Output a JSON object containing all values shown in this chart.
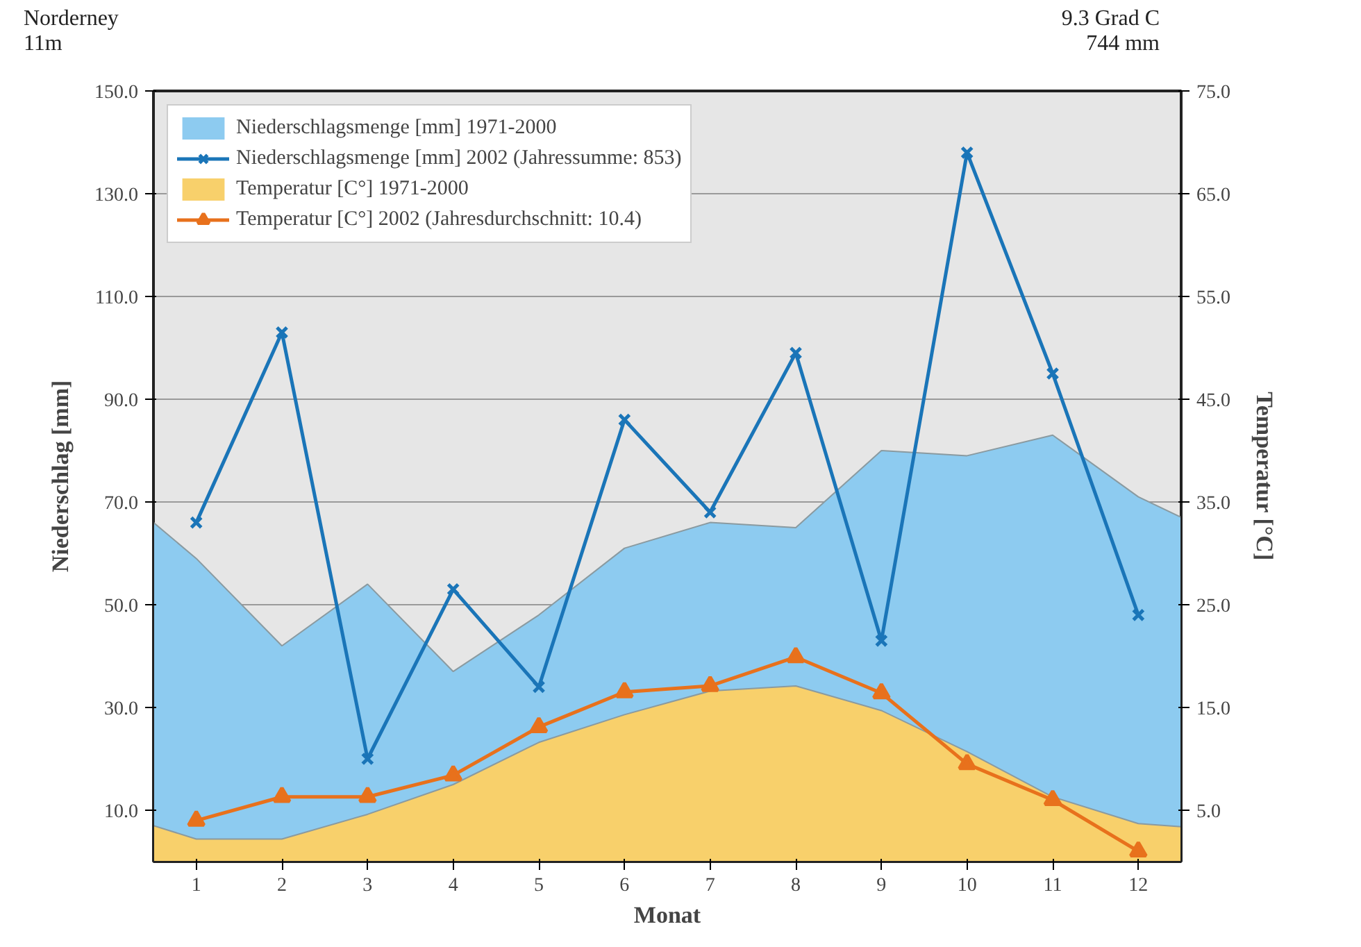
{
  "chart_data": {
    "type": "line",
    "xlabel": "Monat",
    "ylabel": "Niederschlag [mm]",
    "y2label": "Temperatur [°C]",
    "annotations": [
      "Norderney",
      "11m",
      "9.3 Grad C",
      "744 mm"
    ],
    "xlim": [
      0.5,
      12.5
    ],
    "xticks": [
      1,
      2,
      3,
      4,
      5,
      6,
      7,
      8,
      9,
      10,
      11,
      12
    ],
    "ylim": [
      0,
      150
    ],
    "yticks": [
      {
        "value": 10,
        "label": "10.0"
      },
      {
        "value": 30,
        "label": "30.0"
      },
      {
        "value": 50,
        "label": "50.0"
      },
      {
        "value": 70,
        "label": "70.0"
      },
      {
        "value": 90,
        "label": "90.0"
      },
      {
        "value": 110,
        "label": "110.0"
      },
      {
        "value": 130,
        "label": "130.0"
      },
      {
        "value": 150,
        "label": "150.0"
      }
    ],
    "y2lim": [
      0,
      75
    ],
    "y2ticks": [
      {
        "value": 5,
        "label": "5.0"
      },
      {
        "value": 15,
        "label": "15.0"
      },
      {
        "value": 25,
        "label": "25.0"
      },
      {
        "value": 35,
        "label": "35.0"
      },
      {
        "value": 45,
        "label": "45.0"
      },
      {
        "value": 55,
        "label": "55.0"
      },
      {
        "value": 65,
        "label": "65.0"
      },
      {
        "value": 75,
        "label": "75.0"
      }
    ],
    "grid": "y",
    "legend": "top left",
    "series": [
      {
        "name": "Niederschlagsmenge [mm] 1971-2000",
        "type": "area",
        "color": "#8dcbf0",
        "x": [
          0.5,
          1,
          2,
          3,
          4,
          5,
          6,
          7,
          8,
          9,
          10,
          11,
          12,
          12.5
        ],
        "values": [
          66,
          59,
          42,
          54,
          37,
          48,
          61,
          66,
          65,
          80,
          79,
          83,
          71,
          67
        ]
      },
      {
        "name": "Temperatur [C°] 1971-2000",
        "type": "area",
        "axis": "y2",
        "color": "#f8d06b",
        "x": [
          0.5,
          1,
          2,
          3,
          4,
          5,
          6,
          7,
          8,
          9,
          10,
          11,
          12,
          12.5
        ],
        "values": [
          3.5,
          2.2,
          2.2,
          4.6,
          7.5,
          11.6,
          14.3,
          16.6,
          17.1,
          14.7,
          10.7,
          6.3,
          3.7,
          3.4
        ]
      },
      {
        "name": "Niederschlagsmenge [mm] 2002 (Jahressumme: 853)",
        "marker": "cross",
        "color": "#1a75b8",
        "x": [
          1,
          2,
          3,
          4,
          5,
          6,
          7,
          8,
          9,
          10,
          11,
          12
        ],
        "values": [
          66,
          103,
          20,
          53,
          34,
          86,
          68,
          99,
          43,
          138,
          95,
          48
        ]
      },
      {
        "name": "Temperatur [C°] 2002 (Jahresdurchschnitt: 10.4)",
        "axis": "y2",
        "marker": "triangle",
        "color": "#e8711c",
        "x": [
          1,
          2,
          3,
          4,
          5,
          6,
          7,
          8,
          9,
          10,
          11,
          12
        ],
        "values": [
          4.0,
          6.3,
          6.3,
          8.4,
          13.1,
          16.5,
          17.1,
          19.9,
          16.4,
          9.5,
          6.0,
          1.0
        ]
      }
    ]
  }
}
